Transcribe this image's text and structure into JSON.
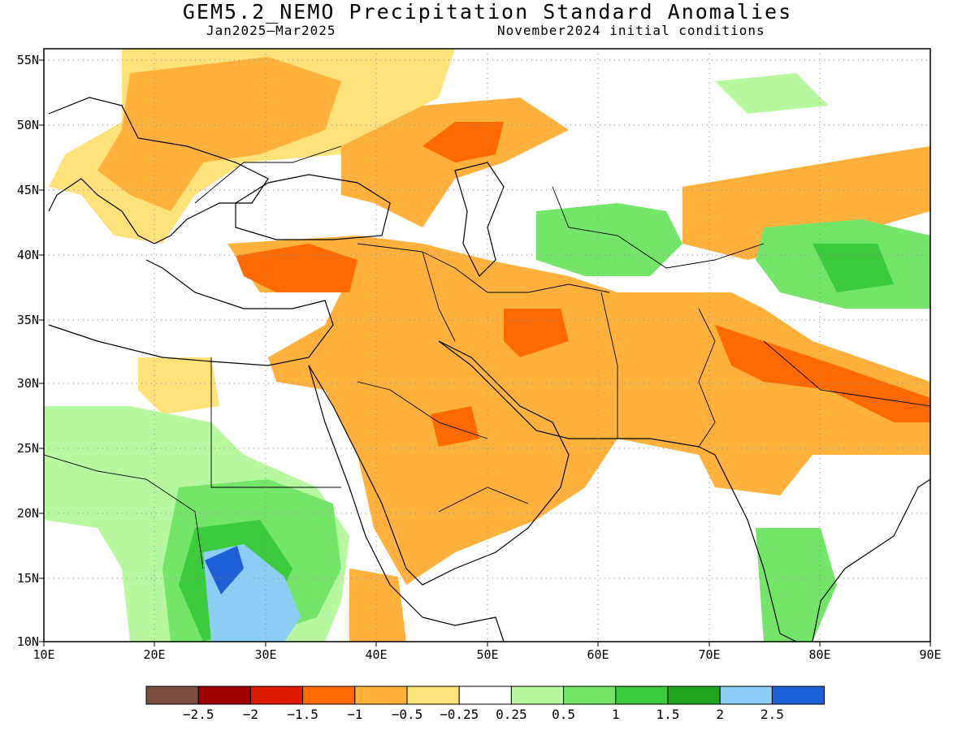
{
  "header": {
    "title": "GEM5.2_NEMO Precipitation Standard Anomalies",
    "period": "Jan2025–Mar2025",
    "init": "November2024 initial conditions"
  },
  "axes": {
    "lat_labels": [
      "55N",
      "50N",
      "45N",
      "40N",
      "35N",
      "30N",
      "25N",
      "20N",
      "15N",
      "10N"
    ],
    "lon_labels": [
      "10E",
      "20E",
      "30E",
      "40E",
      "50E",
      "60E",
      "70E",
      "80E",
      "90E"
    ]
  },
  "colorbar": {
    "colors": [
      "#7a4f3f",
      "#a10000",
      "#dd1b00",
      "#ff6a00",
      "#ffb13b",
      "#ffe27a",
      "#ffffff",
      "#b6f7a0",
      "#73e66a",
      "#3ccb3c",
      "#1fa51f",
      "#8ccdf5",
      "#1f5fd8"
    ],
    "labels": [
      "−2.5",
      "−2",
      "−1.5",
      "−1",
      "−0.5",
      "−0.25",
      "0.25",
      "0.5",
      "1",
      "1.5",
      "2",
      "2.5"
    ]
  },
  "legend_colors": {
    "light_orange": "#ffb13b",
    "orange": "#ff6a00",
    "red": "#dd1b00",
    "light_green": "#b6f7a0",
    "green": "#73e66a",
    "mid_green": "#3ccb3c",
    "light_blue": "#8ccdf5",
    "blue": "#1f5fd8"
  }
}
